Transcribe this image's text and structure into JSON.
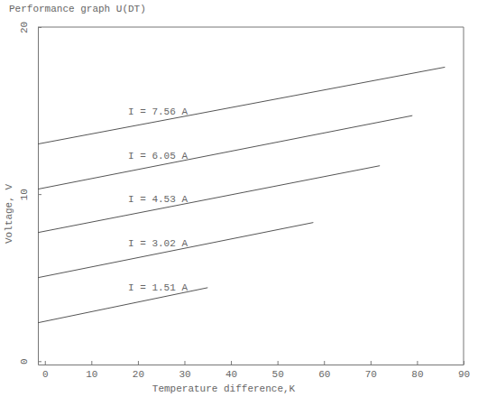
{
  "chart_data": {
    "type": "line",
    "title": "Performance graph U(DT)",
    "x_label": "Temperature difference,K",
    "y_label": "Voltage, V",
    "xlim": [
      -1.5,
      90
    ],
    "ylim": [
      -0.2,
      20
    ],
    "xticks": [
      0,
      10,
      20,
      30,
      40,
      50,
      60,
      70,
      80,
      90
    ],
    "yticks": [
      0,
      10,
      20
    ],
    "grid": false,
    "series": [
      {
        "name": "I = 7.56 A",
        "color": "#555555",
        "x": [
          -1.5,
          86
        ],
        "values": [
          13.0,
          17.6
        ]
      },
      {
        "name": "I = 6.05 A",
        "color": "#555555",
        "x": [
          -1.5,
          79
        ],
        "values": [
          10.3,
          14.7
        ]
      },
      {
        "name": "I = 4.53 A",
        "color": "#555555",
        "x": [
          -1.5,
          72
        ],
        "values": [
          7.7,
          11.7
        ]
      },
      {
        "name": "I = 3.02 A",
        "color": "#555555",
        "x": [
          -1.5,
          57.7
        ],
        "values": [
          5.0,
          8.3
        ]
      },
      {
        "name": "I = 1.51 A",
        "color": "#555555",
        "x": [
          -1.5,
          35
        ],
        "values": [
          2.3,
          4.4
        ]
      }
    ]
  }
}
